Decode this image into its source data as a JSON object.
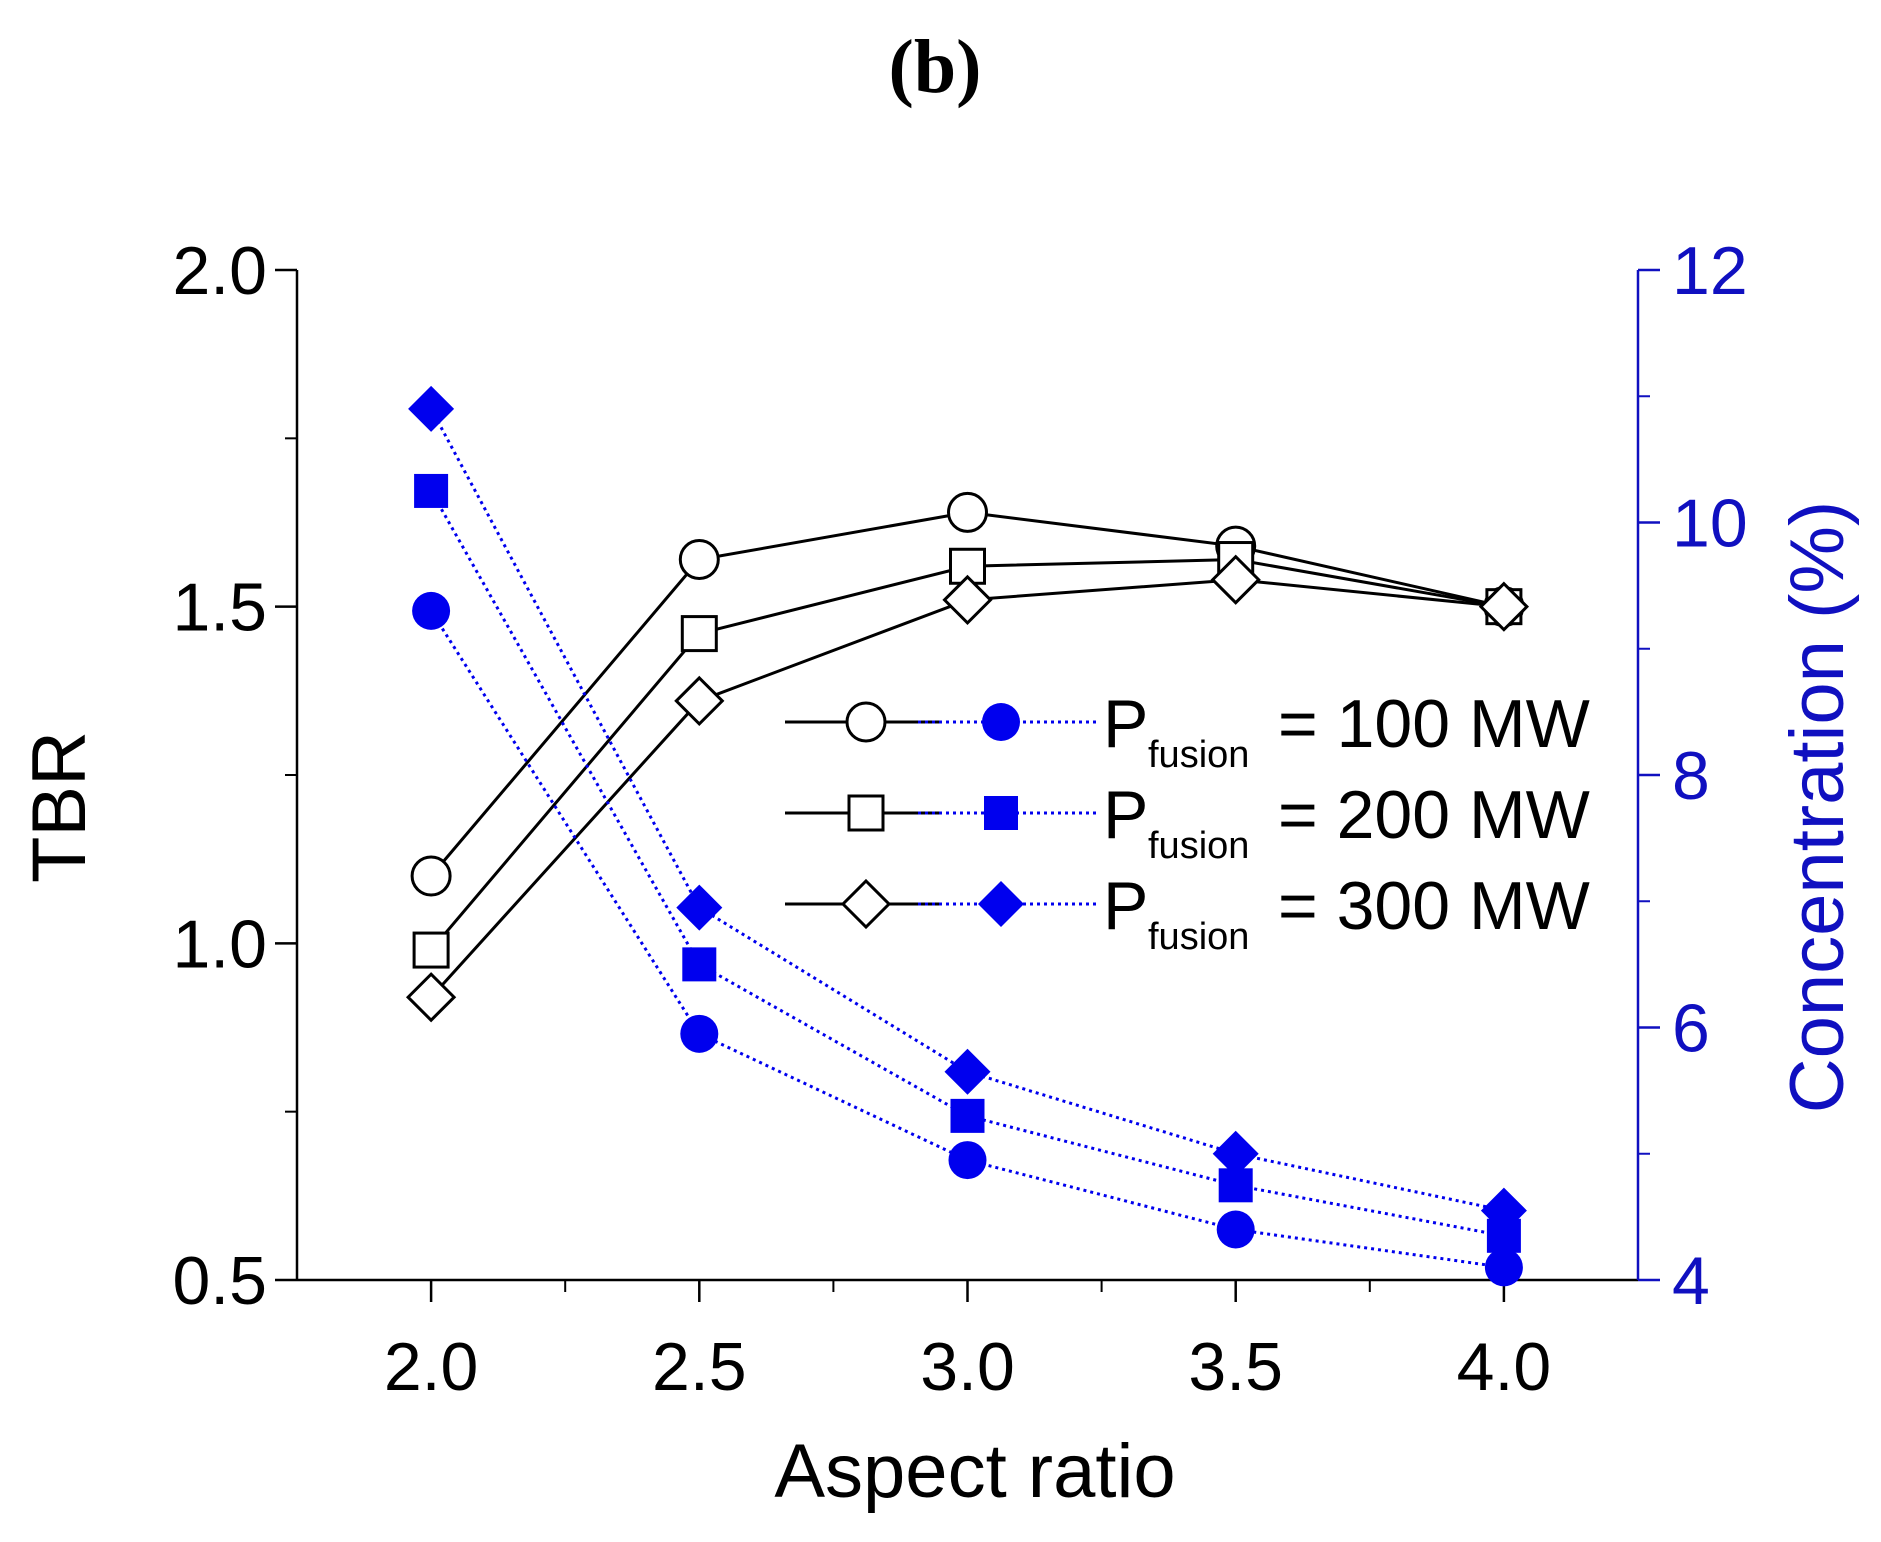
{
  "panel_label": "(b)",
  "chart_data": {
    "type": "line",
    "title": "(b)",
    "xlabel": "Aspect ratio",
    "ylabel": "TBR",
    "y2label": "Concentration (%)",
    "x": [
      2.0,
      2.5,
      3.0,
      3.5,
      4.0
    ],
    "xticks": [
      "2.0",
      "2.5",
      "3.0",
      "3.5",
      "4.0"
    ],
    "xlim": [
      1.75,
      4.25
    ],
    "ylim": [
      0.5,
      2.0
    ],
    "yticks": [
      "0.5",
      "1.0",
      "1.5",
      "2.0"
    ],
    "y2lim": [
      4,
      12
    ],
    "y2ticks": [
      "4",
      "6",
      "8",
      "10",
      "12"
    ],
    "grid": false,
    "legend_position": "center-right",
    "colors": {
      "tbr": "#000000",
      "concentration": "#0000ee",
      "right_axis": "#1010c0"
    },
    "series": [
      {
        "name": "TBR, P_fusion = 100 MW",
        "axis": "left",
        "marker": "open-circle",
        "values": [
          1.1,
          1.57,
          1.64,
          1.59,
          1.5
        ]
      },
      {
        "name": "TBR, P_fusion = 200 MW",
        "axis": "left",
        "marker": "open-square",
        "values": [
          0.99,
          1.46,
          1.56,
          1.57,
          1.5
        ]
      },
      {
        "name": "TBR, P_fusion = 300 MW",
        "axis": "left",
        "marker": "open-diamond",
        "values": [
          0.92,
          1.36,
          1.51,
          1.54,
          1.5
        ]
      },
      {
        "name": "Concentration, P_fusion = 100 MW",
        "axis": "right",
        "marker": "filled-circle",
        "values": [
          9.3,
          5.95,
          4.95,
          4.4,
          4.1
        ]
      },
      {
        "name": "Concentration, P_fusion = 200 MW",
        "axis": "right",
        "marker": "filled-square",
        "values": [
          10.25,
          6.5,
          5.3,
          4.75,
          4.35
        ]
      },
      {
        "name": "Concentration, P_fusion = 300 MW",
        "axis": "right",
        "marker": "filled-diamond",
        "values": [
          10.9,
          6.95,
          5.65,
          5.0,
          4.55
        ]
      }
    ],
    "legend": [
      {
        "symbol": "P",
        "subscript": "fusion",
        "text": "= 100 MW",
        "marker": "circle"
      },
      {
        "symbol": "P",
        "subscript": "fusion",
        "text": "= 200 MW",
        "marker": "square"
      },
      {
        "symbol": "P",
        "subscript": "fusion",
        "text": "= 300 MW",
        "marker": "diamond"
      }
    ]
  }
}
